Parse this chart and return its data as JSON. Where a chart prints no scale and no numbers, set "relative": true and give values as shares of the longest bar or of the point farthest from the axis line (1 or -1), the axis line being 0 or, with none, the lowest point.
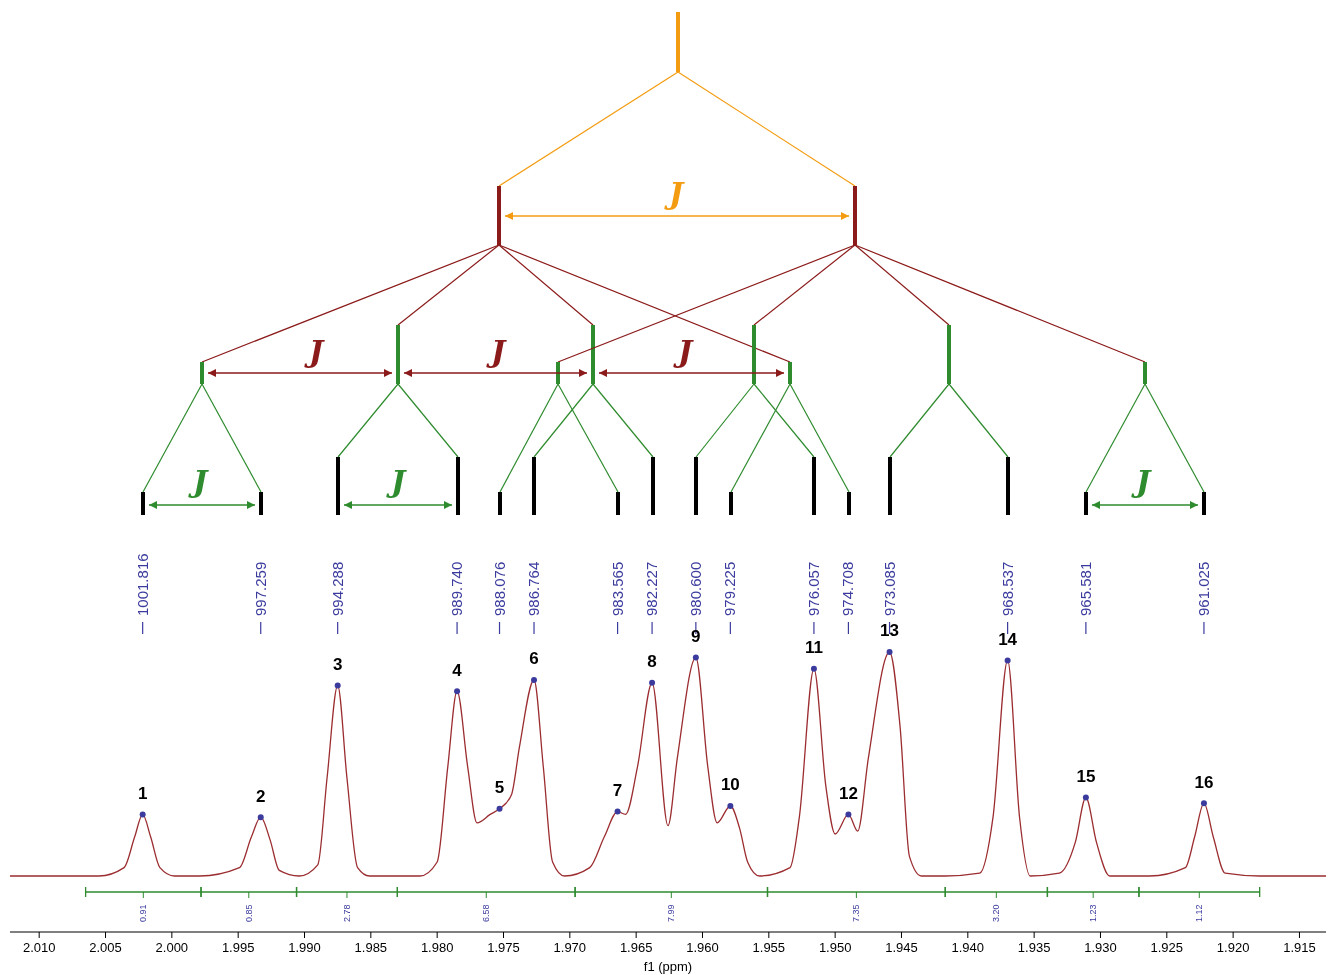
{
  "chart_data": {
    "type": "line",
    "relative": true,
    "xlabel": "f1 (ppm)",
    "xlim": [
      2.0122,
      1.913
    ],
    "xticks": [
      {
        "value": 2.01,
        "label": "2.010"
      },
      {
        "value": 2.005,
        "label": "2.005"
      },
      {
        "value": 2.0,
        "label": "2.000"
      },
      {
        "value": 1.995,
        "label": "1.995"
      },
      {
        "value": 1.99,
        "label": "1.990"
      },
      {
        "value": 1.985,
        "label": "1.985"
      },
      {
        "value": 1.98,
        "label": "1.980"
      },
      {
        "value": 1.975,
        "label": "1.975"
      },
      {
        "value": 1.97,
        "label": "1.970"
      },
      {
        "value": 1.965,
        "label": "1.965"
      },
      {
        "value": 1.96,
        "label": "1.960"
      },
      {
        "value": 1.955,
        "label": "1.955"
      },
      {
        "value": 1.95,
        "label": "1.950"
      },
      {
        "value": 1.945,
        "label": "1.945"
      },
      {
        "value": 1.94,
        "label": "1.940"
      },
      {
        "value": 1.935,
        "label": "1.935"
      },
      {
        "value": 1.93,
        "label": "1.930"
      },
      {
        "value": 1.925,
        "label": "1.925"
      },
      {
        "value": 1.92,
        "label": "1.920"
      },
      {
        "value": 1.915,
        "label": "1.915"
      }
    ],
    "series": [
      {
        "color": "#9b2d30",
        "x": [
          2.0122,
          2.0055,
          2.0036,
          2.0028,
          2.0022,
          2.0016,
          2.0009,
          1.9998,
          1.9979,
          1.9949,
          1.994,
          1.9933,
          1.9926,
          1.9919,
          1.9904,
          1.989,
          1.9883,
          1.9875,
          1.9868,
          1.986,
          1.9851,
          1.9828,
          1.9813,
          1.98,
          1.9792,
          1.9785,
          1.9777,
          1.977,
          1.976,
          1.9753,
          1.9744,
          1.9738,
          1.9727,
          1.972,
          1.9713,
          1.9704,
          1.9685,
          1.9674,
          1.9664,
          1.9658,
          1.9649,
          1.9638,
          1.9626,
          1.9619,
          1.9605,
          1.9596,
          1.9589,
          1.9579,
          1.9572,
          1.9566,
          1.9557,
          1.9534,
          1.9527,
          1.9516,
          1.9507,
          1.95,
          1.949,
          1.9483,
          1.9475,
          1.9459,
          1.9451,
          1.9444,
          1.9435,
          1.9417,
          1.9391,
          1.9381,
          1.937,
          1.9361,
          1.9353,
          1.9331,
          1.9319,
          1.9311,
          1.9303,
          1.9293,
          1.9263,
          1.9236,
          1.9229,
          1.9222,
          1.9215,
          1.9206,
          1.918,
          1.913
        ],
        "values": [
          0.2,
          0.2,
          0.23,
          0.34,
          0.42,
          0.34,
          0.23,
          0.2,
          0.2,
          0.23,
          0.34,
          0.41,
          0.33,
          0.22,
          0.2,
          0.24,
          0.55,
          0.88,
          0.55,
          0.23,
          0.2,
          0.2,
          0.2,
          0.25,
          0.59,
          0.86,
          0.59,
          0.39,
          0.42,
          0.44,
          0.49,
          0.66,
          0.9,
          0.59,
          0.25,
          0.2,
          0.23,
          0.34,
          0.43,
          0.42,
          0.59,
          0.89,
          0.38,
          0.62,
          0.98,
          0.59,
          0.39,
          0.45,
          0.37,
          0.25,
          0.2,
          0.23,
          0.41,
          0.94,
          0.52,
          0.35,
          0.42,
          0.36,
          0.62,
          1.0,
          0.73,
          0.27,
          0.2,
          0.2,
          0.21,
          0.41,
          0.97,
          0.41,
          0.2,
          0.21,
          0.32,
          0.48,
          0.32,
          0.2,
          0.2,
          0.23,
          0.34,
          0.46,
          0.34,
          0.21,
          0.2,
          0.2
        ]
      },
      {
        "type": "scatter",
        "color": "#3b3b9e",
        "x": [
          2.0022,
          1.9933,
          1.9875,
          1.9785,
          1.9753,
          1.9727,
          1.9664,
          1.9638,
          1.9605,
          1.9579,
          1.9516,
          1.949,
          1.9459,
          1.937,
          1.9311,
          1.9222
        ],
        "values": [
          0.42,
          0.41,
          0.88,
          0.86,
          0.44,
          0.9,
          0.43,
          0.89,
          0.98,
          0.45,
          0.94,
          0.42,
          1.0,
          0.97,
          0.48,
          0.46
        ]
      }
    ],
    "annotations": [
      "1001.816",
      "997.259",
      "994.288",
      "989.740",
      "988.076",
      "986.764",
      "983.565",
      "982.227",
      "980.600",
      "979.225",
      "976.057",
      "974.708",
      "973.085",
      "968.537",
      "965.581",
      "961.025",
      "1",
      "2",
      "3",
      "4",
      "5",
      "6",
      "7",
      "8",
      "9",
      "10",
      "11",
      "12",
      "13",
      "14",
      "15",
      "16",
      "J",
      "J",
      "J",
      "J",
      "J",
      "J",
      "J",
      "0.91",
      "0.85",
      "2.78",
      "6.58",
      "7.99",
      "7.35",
      "3.20",
      "1.23",
      "1.12"
    ]
  }
}
